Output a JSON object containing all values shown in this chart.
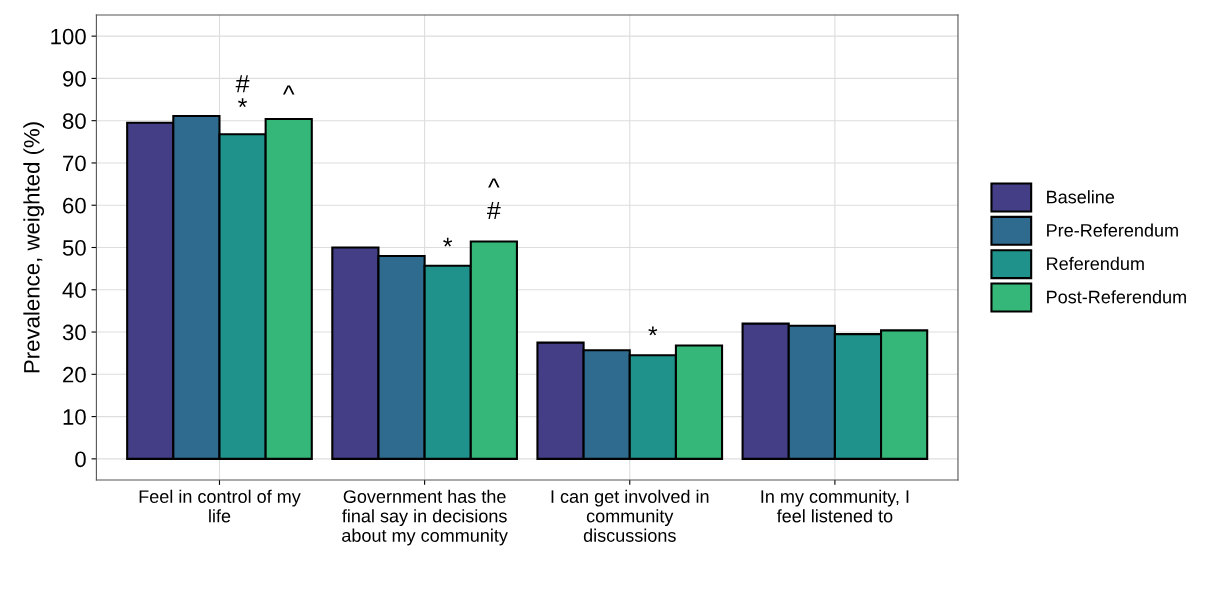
{
  "chart_data": {
    "type": "bar",
    "ylabel": "Prevalence, weighted (%)",
    "categories": [
      "Feel in control of my life",
      "Government has the final say in decisions about my community",
      "I can get involved in community discussions",
      "In my community, I feel listened to"
    ],
    "series": [
      {
        "name": "Baseline",
        "color": "#433e85",
        "values": [
          79.5,
          50.0,
          27.5,
          32.0
        ]
      },
      {
        "name": "Pre-Referendum",
        "color": "#2f6b8e",
        "values": [
          81.1,
          48.0,
          25.7,
          31.5
        ]
      },
      {
        "name": "Referendum",
        "color": "#20928c",
        "values": [
          76.8,
          45.7,
          24.5,
          29.5
        ]
      },
      {
        "name": "Post-Referendum",
        "color": "#35b779",
        "values": [
          80.4,
          51.4,
          26.8,
          30.4
        ]
      }
    ],
    "annotations": [
      "*",
      "#",
      "^",
      "*",
      "#",
      "^",
      "*"
    ],
    "ylim": [
      -5,
      105
    ],
    "yticks": [
      0,
      10,
      20,
      30,
      40,
      50,
      60,
      70,
      80,
      90,
      100
    ],
    "grid": true,
    "legend": "right"
  }
}
